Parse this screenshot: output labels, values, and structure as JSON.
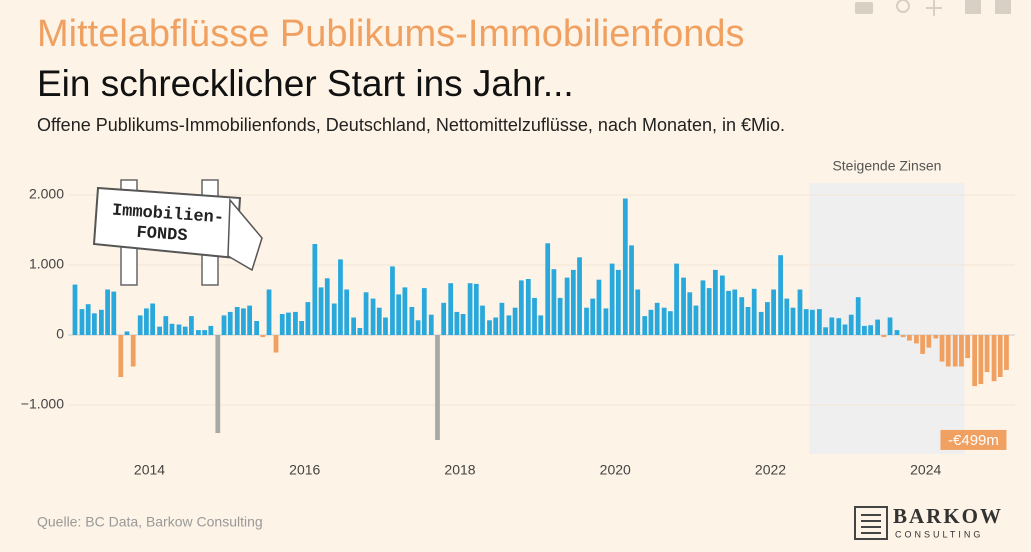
{
  "chart_data": {
    "type": "bar",
    "title": "Mittelabflüsse Publikums-Immobilienfonds",
    "subtitle": "Ein schrecklicher Start ins Jahr...",
    "description": "Offene Publikums-Immobilienfonds, Deutschland, Nettomittelzuflüsse, nach Monaten, in €Mio.",
    "source": "Quelle: BC Data, Barkow Consulting",
    "logo": {
      "name": "BARKOW",
      "sub": "CONSULTING"
    },
    "sign": [
      "Immobilien-",
      "FONDS"
    ],
    "shaded_region": {
      "text": "Steigende Zinsen",
      "x0": 2022.5,
      "x1": 2024.5,
      "color": "#efefef"
    },
    "annotations": [
      {
        "text": "-€499m",
        "x": 2025.04,
        "y": -499,
        "color": "#f0a060"
      }
    ],
    "x": [
      2013.04,
      2013.13,
      2013.21,
      2013.29,
      2013.38,
      2013.46,
      2013.54,
      2013.63,
      2013.71,
      2013.79,
      2013.88,
      2013.96,
      2014.04,
      2014.13,
      2014.21,
      2014.29,
      2014.38,
      2014.46,
      2014.54,
      2014.63,
      2014.71,
      2014.79,
      2014.88,
      2014.96,
      2015.04,
      2015.13,
      2015.21,
      2015.29,
      2015.38,
      2015.46,
      2015.54,
      2015.63,
      2015.71,
      2015.79,
      2015.88,
      2015.96,
      2016.04,
      2016.13,
      2016.21,
      2016.29,
      2016.38,
      2016.46,
      2016.54,
      2016.63,
      2016.71,
      2016.79,
      2016.88,
      2016.96,
      2017.04,
      2017.13,
      2017.21,
      2017.29,
      2017.38,
      2017.46,
      2017.54,
      2017.63,
      2017.71,
      2017.79,
      2017.88,
      2017.96,
      2018.04,
      2018.13,
      2018.21,
      2018.29,
      2018.38,
      2018.46,
      2018.54,
      2018.63,
      2018.71,
      2018.79,
      2018.88,
      2018.96,
      2019.04,
      2019.13,
      2019.21,
      2019.29,
      2019.38,
      2019.46,
      2019.54,
      2019.63,
      2019.71,
      2019.79,
      2019.88,
      2019.96,
      2020.04,
      2020.13,
      2020.21,
      2020.29,
      2020.38,
      2020.46,
      2020.54,
      2020.63,
      2020.71,
      2020.79,
      2020.88,
      2020.96,
      2021.04,
      2021.13,
      2021.21,
      2021.29,
      2021.38,
      2021.46,
      2021.54,
      2021.63,
      2021.71,
      2021.79,
      2021.88,
      2021.96,
      2022.04,
      2022.13,
      2022.21,
      2022.29,
      2022.38,
      2022.46,
      2022.54,
      2022.63,
      2022.71,
      2022.79,
      2022.88,
      2022.96,
      2023.04,
      2023.13,
      2023.21,
      2023.29,
      2023.38,
      2023.46,
      2023.54,
      2023.63,
      2023.71,
      2023.79,
      2023.88,
      2023.96,
      2024.04,
      2024.13,
      2024.21,
      2024.29,
      2024.38,
      2024.46,
      2024.54,
      2024.63,
      2024.71,
      2024.79,
      2024.88,
      2024.96,
      2025.04
    ],
    "values": [
      720,
      370,
      440,
      310,
      360,
      650,
      620,
      -600,
      50,
      -450,
      280,
      380,
      450,
      120,
      270,
      160,
      150,
      120,
      270,
      70,
      70,
      130,
      -1400,
      280,
      330,
      400,
      380,
      420,
      200,
      -30,
      650,
      -250,
      300,
      320,
      330,
      200,
      470,
      1300,
      680,
      810,
      450,
      1080,
      650,
      250,
      100,
      610,
      520,
      390,
      250,
      980,
      580,
      680,
      400,
      210,
      670,
      290,
      -1500,
      460,
      740,
      330,
      300,
      740,
      730,
      420,
      210,
      250,
      460,
      280,
      390,
      780,
      800,
      530,
      280,
      1310,
      940,
      530,
      820,
      930,
      1110,
      390,
      520,
      790,
      380,
      1020,
      930,
      1950,
      1280,
      650,
      270,
      360,
      460,
      390,
      340,
      1020,
      820,
      610,
      420,
      780,
      670,
      930,
      850,
      630,
      650,
      540,
      400,
      660,
      330,
      470,
      650,
      1140,
      520,
      390,
      650,
      370,
      360,
      370,
      110,
      250,
      240,
      150,
      290,
      540,
      130,
      140,
      220,
      -30,
      250,
      70,
      -30,
      -80,
      -120,
      -270,
      -180,
      -50,
      -380,
      -450,
      -450,
      -450,
      -330,
      -730,
      -700,
      -530,
      -660,
      -600,
      -499
    ],
    "colors": [
      "#29a8dc",
      "#29a8dc",
      "#29a8dc",
      "#29a8dc",
      "#29a8dc",
      "#29a8dc",
      "#29a8dc",
      "#f0a060",
      "#29a8dc",
      "#f0a060",
      "#29a8dc",
      "#29a8dc",
      "#29a8dc",
      "#29a8dc",
      "#29a8dc",
      "#29a8dc",
      "#29a8dc",
      "#29a8dc",
      "#29a8dc",
      "#29a8dc",
      "#29a8dc",
      "#29a8dc",
      "#a8a8a8",
      "#29a8dc",
      "#29a8dc",
      "#29a8dc",
      "#29a8dc",
      "#29a8dc",
      "#29a8dc",
      "#f0a060",
      "#29a8dc",
      "#f0a060",
      "#29a8dc",
      "#29a8dc",
      "#29a8dc",
      "#29a8dc",
      "#29a8dc",
      "#29a8dc",
      "#29a8dc",
      "#29a8dc",
      "#29a8dc",
      "#29a8dc",
      "#29a8dc",
      "#29a8dc",
      "#29a8dc",
      "#29a8dc",
      "#29a8dc",
      "#29a8dc",
      "#29a8dc",
      "#29a8dc",
      "#29a8dc",
      "#29a8dc",
      "#29a8dc",
      "#29a8dc",
      "#29a8dc",
      "#29a8dc",
      "#a8a8a8",
      "#29a8dc",
      "#29a8dc",
      "#29a8dc",
      "#29a8dc",
      "#29a8dc",
      "#29a8dc",
      "#29a8dc",
      "#29a8dc",
      "#29a8dc",
      "#29a8dc",
      "#29a8dc",
      "#29a8dc",
      "#29a8dc",
      "#29a8dc",
      "#29a8dc",
      "#29a8dc",
      "#29a8dc",
      "#29a8dc",
      "#29a8dc",
      "#29a8dc",
      "#29a8dc",
      "#29a8dc",
      "#29a8dc",
      "#29a8dc",
      "#29a8dc",
      "#29a8dc",
      "#29a8dc",
      "#29a8dc",
      "#29a8dc",
      "#29a8dc",
      "#29a8dc",
      "#29a8dc",
      "#29a8dc",
      "#29a8dc",
      "#29a8dc",
      "#29a8dc",
      "#29a8dc",
      "#29a8dc",
      "#29a8dc",
      "#29a8dc",
      "#29a8dc",
      "#29a8dc",
      "#29a8dc",
      "#29a8dc",
      "#29a8dc",
      "#29a8dc",
      "#29a8dc",
      "#29a8dc",
      "#29a8dc",
      "#29a8dc",
      "#29a8dc",
      "#29a8dc",
      "#29a8dc",
      "#29a8dc",
      "#29a8dc",
      "#29a8dc",
      "#29a8dc",
      "#29a8dc",
      "#29a8dc",
      "#29a8dc",
      "#29a8dc",
      "#29a8dc",
      "#29a8dc",
      "#29a8dc",
      "#29a8dc",
      "#29a8dc",
      "#29a8dc",
      "#29a8dc",
      "#f0a060",
      "#29a8dc",
      "#29a8dc",
      "#f0a060",
      "#f0a060",
      "#f0a060",
      "#f0a060",
      "#f0a060",
      "#f0a060",
      "#f0a060",
      "#f0a060",
      "#f0a060",
      "#f0a060",
      "#f0a060",
      "#f0a060",
      "#f0a060",
      "#f0a060",
      "#f0a060",
      "#f0a060",
      "#f0a060"
    ],
    "xlim": [
      2012.95,
      2025.15
    ],
    "xticks": [
      2014,
      2016,
      2018,
      2020,
      2022,
      2024
    ],
    "ylim": [
      -1700,
      2600
    ],
    "yticks": [
      {
        "value": 2000,
        "label": "2.000"
      },
      {
        "value": 1000,
        "label": "1.000"
      },
      0,
      {
        "value": -1000,
        "label": "−1.000"
      }
    ],
    "grid": true
  }
}
